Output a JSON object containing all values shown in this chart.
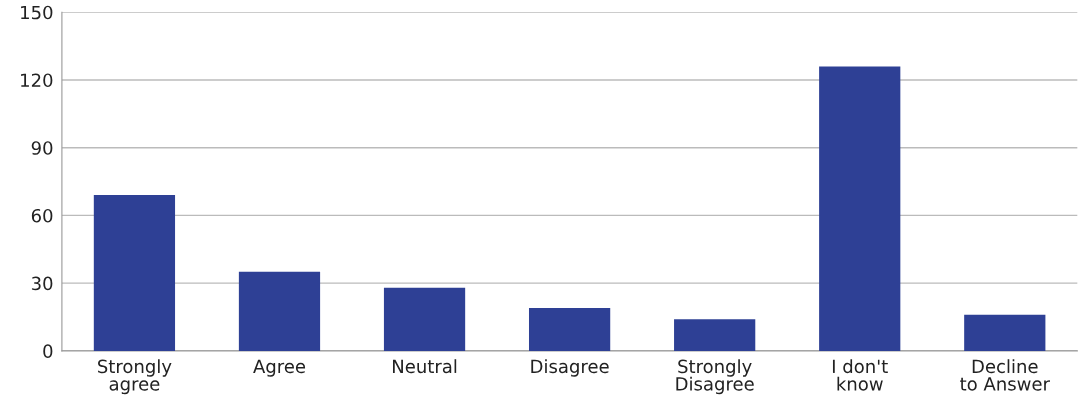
{
  "chart_data": {
    "type": "bar",
    "categories": [
      "Strongly\nagree",
      "Agree",
      "Neutral",
      "Disagree",
      "Strongly\nDisagree",
      "I don't\nknow",
      "Decline\nto Answer"
    ],
    "values": [
      69,
      35,
      28,
      19,
      14,
      126,
      16
    ],
    "color": "#2e4095",
    "ylim": [
      0,
      150
    ],
    "yticks": [
      0,
      30,
      60,
      90,
      120,
      150
    ],
    "grid": "y"
  }
}
